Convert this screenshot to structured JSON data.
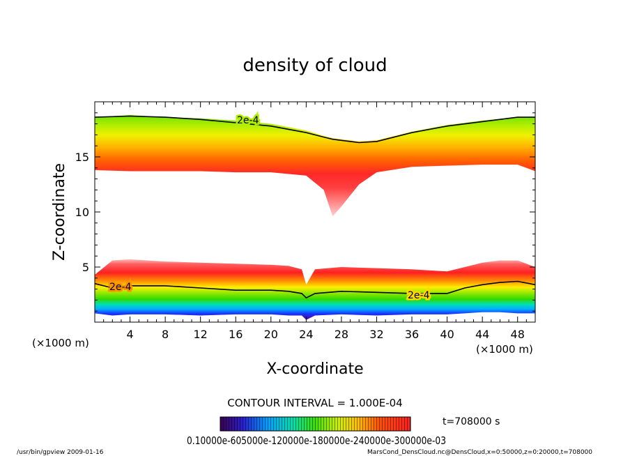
{
  "chart_data": {
    "type": "heatmap",
    "title": "density of cloud",
    "xlabel": "X-coordinate",
    "ylabel": "Z-coordinate",
    "x_unit": "(×1000 m)",
    "z_unit": "(×1000 m)",
    "xlim": [
      0,
      50
    ],
    "ylim": [
      0,
      20
    ],
    "x_ticks": [
      4,
      8,
      12,
      16,
      20,
      24,
      28,
      32,
      36,
      40,
      44,
      48
    ],
    "y_ticks": [
      5,
      10,
      15
    ],
    "contour_interval_text": "CONTOUR INTERVAL = 1.000E-04",
    "contour_label": "2e-4",
    "time_text": "t=708000 s",
    "colorbar_labels_text": "0.10000e-605000e-120000e-180000e-240000e-300000e-03",
    "upper_layer": {
      "description_values": "cloud density contour 2e-4",
      "x": [
        0,
        4,
        8,
        12,
        16,
        20,
        24,
        26,
        27,
        28,
        30,
        32,
        36,
        40,
        44,
        48,
        50
      ],
      "top": [
        18.6,
        18.8,
        18.6,
        18.5,
        18.3,
        18.0,
        17.4,
        16.9,
        16.7,
        16.6,
        16.4,
        16.5,
        17.3,
        17.9,
        18.3,
        18.6,
        18.6
      ],
      "contour_2e4": [
        18.6,
        18.7,
        18.6,
        18.4,
        18.1,
        17.8,
        17.2,
        16.8,
        16.6,
        16.5,
        16.3,
        16.4,
        17.2,
        17.8,
        18.2,
        18.6,
        18.6
      ],
      "bottom": [
        13.8,
        13.7,
        13.7,
        13.7,
        13.6,
        13.6,
        13.3,
        12.0,
        9.6,
        10.5,
        12.5,
        13.6,
        14.1,
        14.2,
        14.3,
        14.3,
        13.7
      ]
    },
    "lower_layer": {
      "x": [
        0,
        2,
        4,
        8,
        12,
        16,
        20,
        22,
        23.5,
        24,
        25,
        28,
        32,
        36,
        40,
        42,
        44,
        46,
        48,
        50
      ],
      "top": [
        4.3,
        5.6,
        5.7,
        5.5,
        5.4,
        5.3,
        5.2,
        5.1,
        4.8,
        3.4,
        4.8,
        5.0,
        4.9,
        4.8,
        4.6,
        5.0,
        5.4,
        5.6,
        5.6,
        5.0
      ],
      "contour_2e4": [
        3.5,
        3.1,
        3.3,
        3.3,
        3.1,
        2.9,
        2.9,
        2.8,
        2.6,
        2.2,
        2.6,
        2.8,
        2.7,
        2.6,
        2.6,
        3.1,
        3.4,
        3.6,
        3.7,
        3.4
      ],
      "bottom": [
        0.8,
        0.6,
        0.7,
        0.7,
        0.6,
        0.7,
        0.7,
        0.6,
        0.6,
        0.2,
        0.6,
        0.7,
        0.6,
        0.7,
        0.7,
        0.8,
        0.9,
        0.9,
        0.8,
        0.8
      ]
    },
    "colormap": [
      "#5a0096",
      "#2028ff",
      "#00b4ff",
      "#00e6b4",
      "#40e000",
      "#b0ee00",
      "#ffff00",
      "#ffb000",
      "#ff5000",
      "#ff2020",
      "#ff8080",
      "#ffc8c8"
    ]
  },
  "footer": {
    "left": "/usr/bin/gpview   2009-01-16",
    "right": "MarsCond_DensCloud.nc@DensCloud,x=0:50000,z=0:20000,t=708000"
  }
}
